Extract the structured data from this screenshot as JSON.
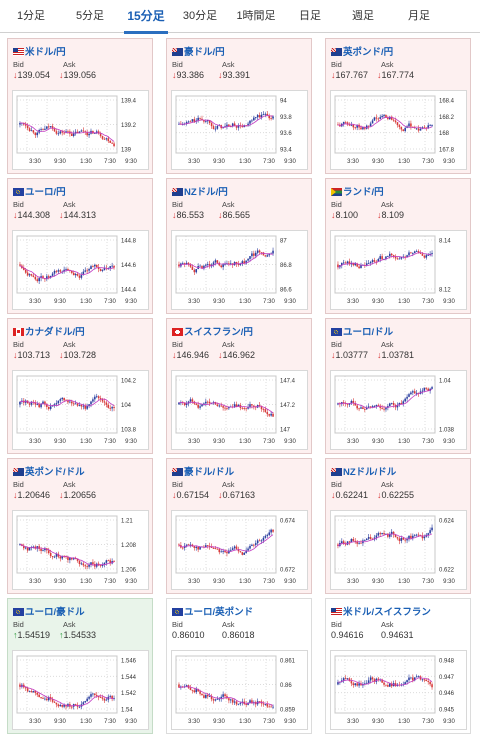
{
  "tabs": [
    {
      "label": "1分足"
    },
    {
      "label": "5分足"
    },
    {
      "label": "15分足"
    },
    {
      "label": "30分足"
    },
    {
      "label": "1時間足"
    },
    {
      "label": "日足"
    },
    {
      "label": "週足"
    },
    {
      "label": "月足"
    }
  ],
  "active_tab": "15分足",
  "colors": {
    "accent": "#1a5fb4",
    "down": "#d83a3a",
    "up": "#2a9a3a",
    "bear_candle": "#d83a3a",
    "bull_candle": "#2b3fa0",
    "ma_line": "#c23cc2",
    "ma_line2": "#3aa0d8"
  },
  "labels": {
    "bid": "Bid",
    "ask": "Ask"
  },
  "x_ticks": [
    "3:30",
    "9:30",
    "1:30",
    "7:30",
    "9:30"
  ],
  "pairs": [
    {
      "name": "米ドル/円",
      "flag": "us-jp",
      "bid": "139.054",
      "ask": "139.056",
      "trend": "down",
      "y_ticks": [
        "139.4",
        "139.2",
        "139"
      ]
    },
    {
      "name": "豪ドル/円",
      "flag": "au-jp",
      "bid": "93.386",
      "ask": "93.391",
      "trend": "down",
      "y_ticks": [
        "94",
        "93.8",
        "93.6",
        "93.4"
      ]
    },
    {
      "name": "英ポンド/円",
      "flag": "gb-jp",
      "bid": "167.767",
      "ask": "167.774",
      "trend": "down",
      "y_ticks": [
        "168.4",
        "168.2",
        "168",
        "167.8"
      ]
    },
    {
      "name": "ユーロ/円",
      "flag": "eu-jp",
      "bid": "144.308",
      "ask": "144.313",
      "trend": "down",
      "y_ticks": [
        "144.8",
        "144.6",
        "144.4"
      ]
    },
    {
      "name": "NZドル/円",
      "flag": "nz-jp",
      "bid": "86.553",
      "ask": "86.565",
      "trend": "down",
      "y_ticks": [
        "87",
        "86.8",
        "86.6"
      ]
    },
    {
      "name": "ランド/円",
      "flag": "za-jp",
      "bid": "8.100",
      "ask": "8.109",
      "trend": "down",
      "y_ticks": [
        "8.14",
        "8.12"
      ]
    },
    {
      "name": "カナダドル/円",
      "flag": "ca-jp",
      "bid": "103.713",
      "ask": "103.728",
      "trend": "down",
      "y_ticks": [
        "104.2",
        "104",
        "103.8"
      ]
    },
    {
      "name": "スイスフラン/円",
      "flag": "ch-jp",
      "bid": "146.946",
      "ask": "146.962",
      "trend": "down",
      "y_ticks": [
        "147.4",
        "147.2",
        "147"
      ]
    },
    {
      "name": "ユーロ/ドル",
      "flag": "eu-us",
      "bid": "1.03777",
      "ask": "1.03781",
      "trend": "down",
      "y_ticks": [
        "1.04",
        "1.038"
      ]
    },
    {
      "name": "英ポンド/ドル",
      "flag": "gb-us",
      "bid": "1.20646",
      "ask": "1.20656",
      "trend": "down",
      "y_ticks": [
        "1.21",
        "1.208",
        "1.206"
      ]
    },
    {
      "name": "豪ドル/ドル",
      "flag": "au-us",
      "bid": "0.67154",
      "ask": "0.67163",
      "trend": "down",
      "y_ticks": [
        "0.674",
        "0.672"
      ]
    },
    {
      "name": "NZドル/ドル",
      "flag": "nz-us",
      "bid": "0.62241",
      "ask": "0.62255",
      "trend": "down",
      "y_ticks": [
        "0.624",
        "0.622"
      ]
    },
    {
      "name": "ユーロ/豪ドル",
      "flag": "eu-au",
      "bid": "1.54519",
      "ask": "1.54533",
      "trend": "up",
      "y_ticks": [
        "1.546",
        "1.544",
        "1.542",
        "1.54"
      ]
    },
    {
      "name": "ユーロ/英ポンド",
      "flag": "eu-gb",
      "bid": "0.86010",
      "ask": "0.86018",
      "trend": "none",
      "y_ticks": [
        "0.861",
        "0.86",
        "0.859"
      ]
    },
    {
      "name": "米ドル/スイスフラン",
      "flag": "us-ch",
      "bid": "0.94616",
      "ask": "0.94631",
      "trend": "none",
      "y_ticks": [
        "0.948",
        "0.947",
        "0.946",
        "0.945"
      ]
    }
  ]
}
